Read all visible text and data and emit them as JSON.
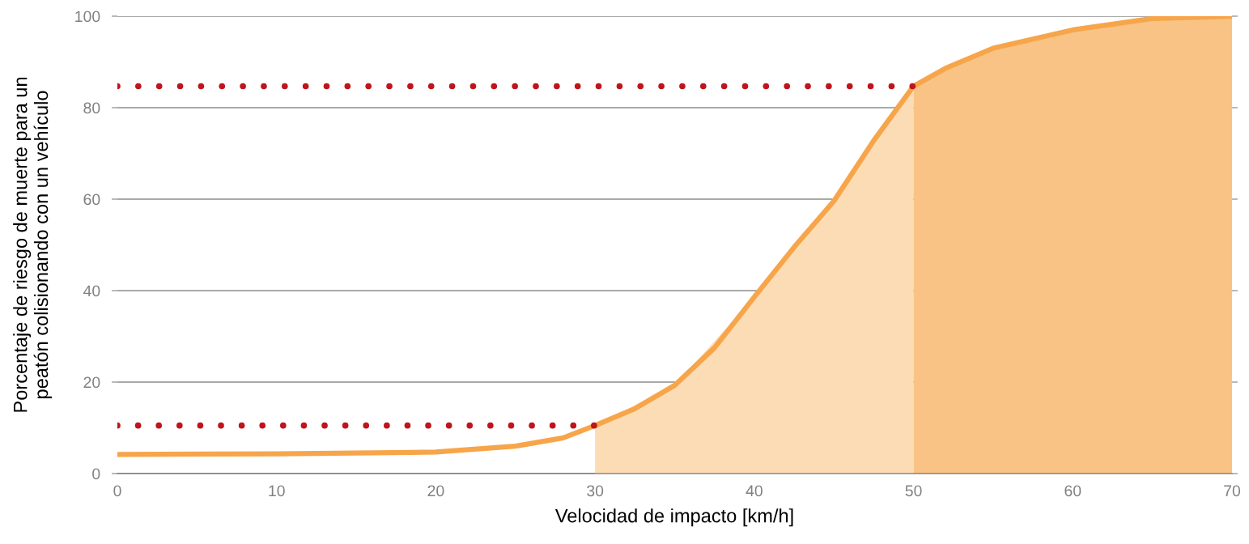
{
  "chart_data": {
    "type": "line",
    "xlabel": "Velocidad de impacto [km/h]",
    "ylabel": "Porcentaje de riesgo de muerte para un\npeatón colisionando con un vehículo",
    "xlim": [
      0,
      70
    ],
    "xticks": [
      0,
      10,
      20,
      30,
      40,
      50,
      60,
      70
    ],
    "ylim": [
      0,
      100
    ],
    "yticks": [
      0,
      20,
      40,
      60,
      80,
      100
    ],
    "grid": "y",
    "legend": false,
    "series": [
      {
        "type": "area",
        "color": "#fcdcb4",
        "x": [
          30,
          35,
          40,
          45,
          47.5,
          50
        ],
        "values": [
          10.5,
          19.3,
          38.6,
          59.6,
          72.8,
          84.7
        ]
      },
      {
        "type": "area",
        "color": "#f9c385",
        "x": [
          50,
          52,
          55,
          60,
          65,
          70
        ],
        "values": [
          84.7,
          88.6,
          93,
          97,
          99.5,
          100
        ]
      },
      {
        "type": "line",
        "color": "#c0141c",
        "line_style": "dotted",
        "x": [
          0,
          30
        ],
        "values": [
          10.5,
          10.5
        ]
      },
      {
        "type": "line",
        "color": "#c0141c",
        "line_style": "dotted",
        "x": [
          0,
          50
        ],
        "values": [
          84.7,
          84.7
        ]
      },
      {
        "color": "#f7a54a",
        "line_style": "solid",
        "x": [
          0,
          10,
          20,
          25,
          28,
          30,
          32.5,
          35,
          37.5,
          40,
          42.5,
          45,
          47.5,
          50,
          52,
          55,
          60,
          65,
          70
        ],
        "values": [
          4.2,
          4.3,
          4.7,
          6,
          7.8,
          10.5,
          14.2,
          19.3,
          27.5,
          38.6,
          49.5,
          59.6,
          72.8,
          84.7,
          88.6,
          93,
          97,
          99.5,
          100
        ]
      }
    ]
  }
}
